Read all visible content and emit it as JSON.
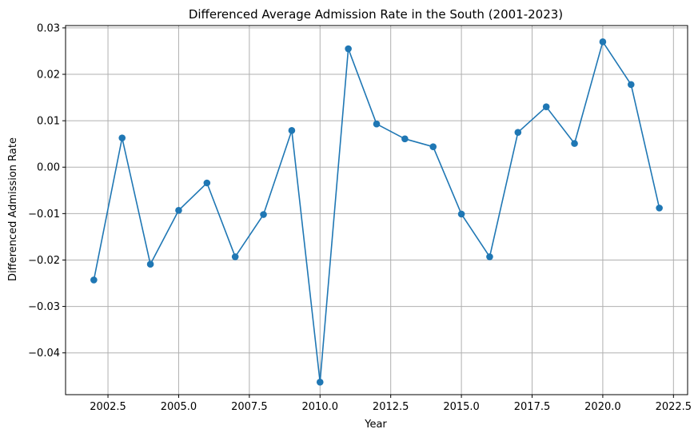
{
  "chart_data": {
    "type": "line",
    "title": "Differenced Average Admission Rate in the South (2001-2023)",
    "xlabel": "Year",
    "ylabel": "Differenced Admission Rate",
    "xlim": [
      2001.0,
      2023.0
    ],
    "ylim": [
      -0.049,
      0.0305
    ],
    "grid": true,
    "markers": true,
    "line_color": "#1f77b4",
    "x_ticks": [
      2002.5,
      2005.0,
      2007.5,
      2010.0,
      2012.5,
      2015.0,
      2017.5,
      2020.0,
      2022.5
    ],
    "x_tick_labels": [
      "2002.5",
      "2005.0",
      "2007.5",
      "2010.0",
      "2012.5",
      "2015.0",
      "2017.5",
      "2020.0",
      "2022.5"
    ],
    "y_ticks": [
      -0.04,
      -0.03,
      -0.02,
      -0.01,
      0.0,
      0.01,
      0.02,
      0.03
    ],
    "y_tick_labels": [
      "−0.04",
      "−0.03",
      "−0.02",
      "−0.01",
      "0.00",
      "0.01",
      "0.02",
      "0.03"
    ],
    "series": [
      {
        "x": [
          2002,
          2003,
          2004,
          2005,
          2006,
          2007,
          2008,
          2009,
          2010,
          2011,
          2012,
          2013,
          2014,
          2015,
          2016,
          2017,
          2018,
          2019,
          2020,
          2021,
          2022
        ],
        "values": [
          -0.0243,
          0.0063,
          -0.0209,
          -0.0093,
          -0.0034,
          -0.0193,
          -0.0102,
          0.0079,
          -0.0463,
          0.0255,
          0.0093,
          0.0061,
          0.0044,
          -0.0101,
          -0.0193,
          0.0075,
          0.013,
          0.0051,
          0.027,
          0.0178,
          -0.0088
        ]
      }
    ]
  }
}
